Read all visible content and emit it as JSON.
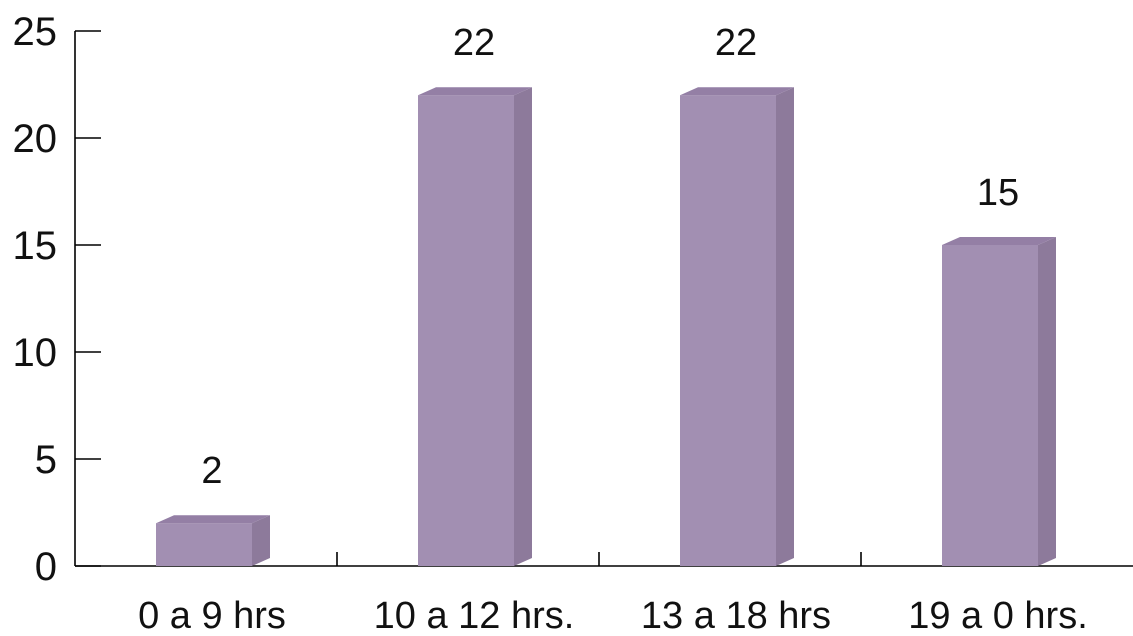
{
  "chart_data": {
    "type": "bar",
    "categories": [
      "0 a 9 hrs",
      "10 a 12 hrs.",
      "13 a 18 hrs",
      "19 a 0 hrs."
    ],
    "values": [
      2,
      22,
      22,
      15
    ],
    "data_labels": [
      "2",
      "22",
      "22",
      "15"
    ],
    "title": "",
    "xlabel": "",
    "ylabel": "",
    "ylim": [
      0,
      25
    ],
    "yticks": [
      0,
      5,
      10,
      15,
      20,
      25
    ],
    "ytick_labels": [
      "0",
      "5",
      "10",
      "15",
      "20",
      "25"
    ],
    "grid": false,
    "legend": "none",
    "style": "3d-column",
    "colors": {
      "bar_front": "#a28fb2",
      "bar_side": "#8d7a9b",
      "bar_top": "#947fa5"
    }
  }
}
